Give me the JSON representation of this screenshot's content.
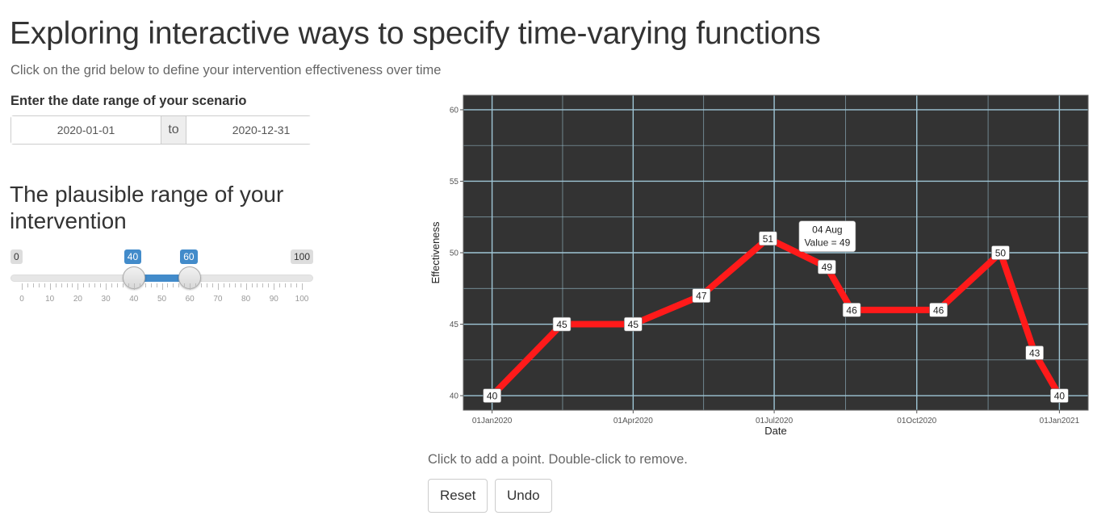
{
  "header": {
    "title": "Exploring interactive ways to specify time-varying functions",
    "subtitle": "Click on the grid below to define your intervention effectiveness over time"
  },
  "date_range": {
    "label": "Enter the date range of your scenario",
    "start": "2020-01-01",
    "separator": "to",
    "end": "2020-12-31"
  },
  "range_slider": {
    "heading": "The plausible range of your intervention",
    "min_label": "0",
    "max_label": "100",
    "low": 40,
    "high": 60,
    "low_label": "40",
    "high_label": "60",
    "grid_labels": [
      "0",
      "10",
      "20",
      "30",
      "40",
      "50",
      "60",
      "70",
      "80",
      "90",
      "100"
    ],
    "accent": "#428bca"
  },
  "chart_data": {
    "type": "line",
    "xlabel": "Date",
    "ylabel": "Effectiveness",
    "x_ticks": [
      "01Jan2020",
      "01Apr2020",
      "01Jul2020",
      "01Oct2020",
      "01Jan2021"
    ],
    "y_ticks": [
      "40",
      "45",
      "50",
      "55",
      "60"
    ],
    "ylim": [
      40,
      60
    ],
    "xlim": [
      "2020-01-01",
      "2021-01-01"
    ],
    "grid": true,
    "background": "#333333",
    "line_color": "#ff1a1a",
    "grid_color": "#9fc6d6",
    "series": [
      {
        "x": [
          "2020-01-01",
          "2020-02-15",
          "2020-04-01",
          "2020-05-15",
          "2020-06-27",
          "2020-08-04",
          "2020-08-20",
          "2020-10-15",
          "2020-11-24",
          "2020-12-16",
          "2021-01-01"
        ],
        "values": [
          40,
          45,
          45,
          47,
          51,
          49,
          46,
          46,
          50,
          43,
          40
        ],
        "labels": [
          "40",
          "45",
          "45",
          "47",
          "51",
          "49",
          "46",
          "46",
          "50",
          "43",
          "40"
        ]
      }
    ],
    "tooltip": {
      "date": "04 Aug",
      "value": "Value = 49",
      "point_index": 5
    }
  },
  "footer": {
    "hint": "Click to add a point. Double-click to remove.",
    "reset_label": "Reset",
    "undo_label": "Undo"
  }
}
